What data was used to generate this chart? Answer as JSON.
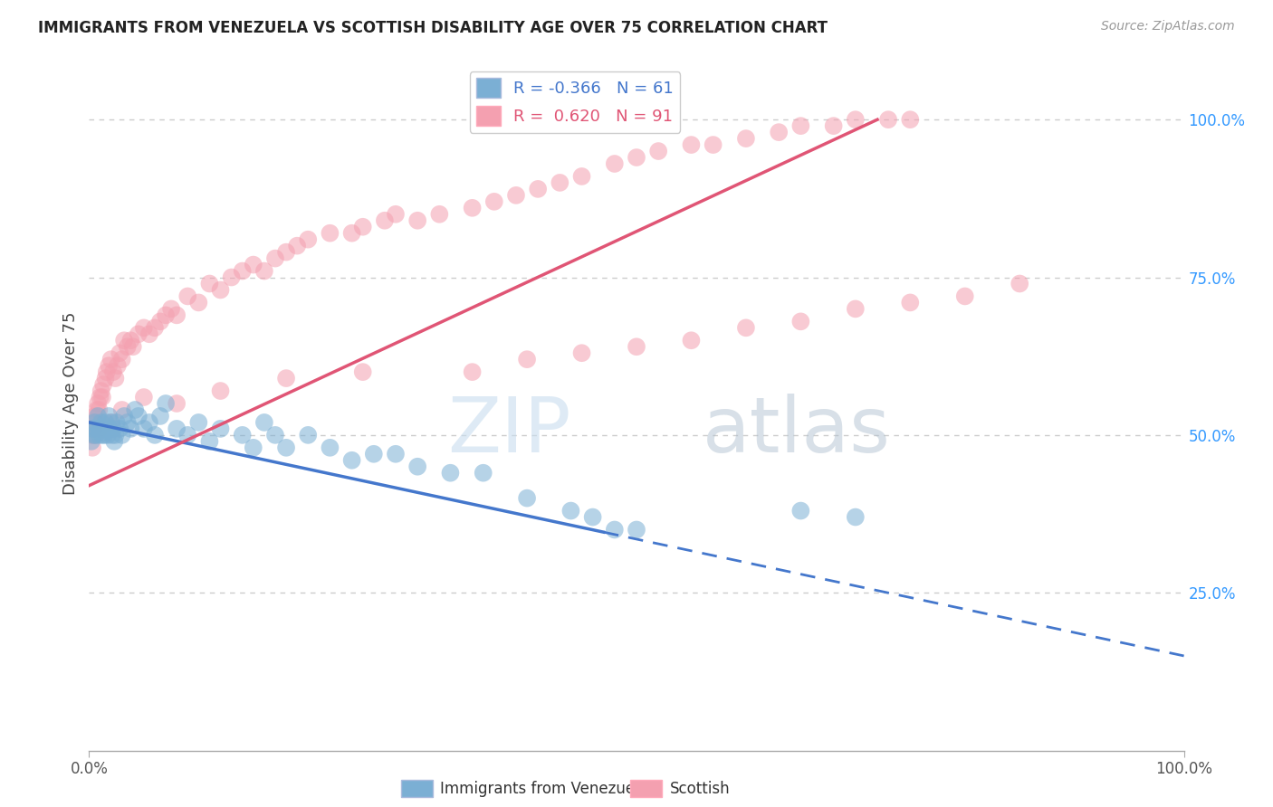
{
  "title": "IMMIGRANTS FROM VENEZUELA VS SCOTTISH DISABILITY AGE OVER 75 CORRELATION CHART",
  "source": "Source: ZipAtlas.com",
  "ylabel": "Disability Age Over 75",
  "blue_R": "-0.366",
  "blue_N": "61",
  "pink_R": "0.620",
  "pink_N": "91",
  "blue_color": "#7BAFD4",
  "pink_color": "#F4A0B0",
  "blue_line_color": "#4477CC",
  "pink_line_color": "#E05575",
  "blue_scatter_x": [
    0.2,
    0.3,
    0.4,
    0.5,
    0.6,
    0.7,
    0.8,
    0.9,
    1.0,
    1.1,
    1.2,
    1.3,
    1.4,
    1.5,
    1.6,
    1.7,
    1.8,
    1.9,
    2.0,
    2.1,
    2.2,
    2.3,
    2.4,
    2.5,
    2.8,
    3.0,
    3.2,
    3.5,
    3.8,
    4.2,
    4.5,
    5.0,
    5.5,
    6.0,
    6.5,
    7.0,
    8.0,
    9.0,
    10.0,
    11.0,
    12.0,
    14.0,
    15.0,
    16.0,
    17.0,
    18.0,
    20.0,
    22.0,
    24.0,
    26.0,
    28.0,
    30.0,
    33.0,
    36.0,
    40.0,
    44.0,
    46.0,
    48.0,
    50.0,
    65.0,
    70.0
  ],
  "blue_scatter_y": [
    49,
    51,
    50,
    52,
    50,
    51,
    53,
    50,
    51,
    52,
    50,
    51,
    50,
    52,
    51,
    50,
    53,
    51,
    52,
    50,
    51,
    49,
    50,
    52,
    51,
    50,
    53,
    52,
    51,
    54,
    53,
    51,
    52,
    50,
    53,
    55,
    51,
    50,
    52,
    49,
    51,
    50,
    48,
    52,
    50,
    48,
    50,
    48,
    46,
    47,
    47,
    45,
    44,
    44,
    40,
    38,
    37,
    35,
    35,
    38,
    37
  ],
  "pink_scatter_x": [
    0.2,
    0.3,
    0.4,
    0.5,
    0.6,
    0.7,
    0.8,
    0.9,
    1.0,
    1.1,
    1.2,
    1.3,
    1.5,
    1.6,
    1.8,
    2.0,
    2.2,
    2.4,
    2.6,
    2.8,
    3.0,
    3.2,
    3.5,
    3.8,
    4.0,
    4.5,
    5.0,
    5.5,
    6.0,
    6.5,
    7.0,
    7.5,
    8.0,
    9.0,
    10.0,
    11.0,
    12.0,
    13.0,
    14.0,
    15.0,
    16.0,
    17.0,
    18.0,
    19.0,
    20.0,
    22.0,
    24.0,
    25.0,
    27.0,
    28.0,
    30.0,
    32.0,
    35.0,
    37.0,
    39.0,
    41.0,
    43.0,
    45.0,
    48.0,
    50.0,
    52.0,
    55.0,
    57.0,
    60.0,
    63.0,
    65.0,
    68.0,
    70.0,
    73.0,
    75.0,
    0.3,
    0.5,
    1.0,
    2.0,
    3.0,
    5.0,
    8.0,
    12.0,
    18.0,
    25.0,
    35.0,
    40.0,
    45.0,
    50.0,
    55.0,
    60.0,
    65.0,
    70.0,
    75.0,
    80.0,
    85.0
  ],
  "pink_scatter_y": [
    50,
    52,
    51,
    53,
    52,
    54,
    55,
    54,
    56,
    57,
    56,
    58,
    59,
    60,
    61,
    62,
    60,
    59,
    61,
    63,
    62,
    65,
    64,
    65,
    64,
    66,
    67,
    66,
    67,
    68,
    69,
    70,
    69,
    72,
    71,
    74,
    73,
    75,
    76,
    77,
    76,
    78,
    79,
    80,
    81,
    82,
    82,
    83,
    84,
    85,
    84,
    85,
    86,
    87,
    88,
    89,
    90,
    91,
    93,
    94,
    95,
    96,
    96,
    97,
    98,
    99,
    99,
    100,
    100,
    100,
    48,
    50,
    51,
    52,
    54,
    56,
    55,
    57,
    59,
    60,
    60,
    62,
    63,
    64,
    65,
    67,
    68,
    70,
    71,
    72,
    74
  ],
  "blue_line_x": [
    0,
    100
  ],
  "blue_line_y": [
    52,
    15
  ],
  "blue_solid_end_x": 47,
  "pink_line_x": [
    0,
    72
  ],
  "pink_line_y": [
    42,
    100
  ],
  "xlim": [
    0,
    100
  ],
  "ylim": [
    0,
    110
  ],
  "ytick_vals": [
    25,
    50,
    75,
    100
  ],
  "ytick_labels": [
    "25.0%",
    "50.0%",
    "75.0%",
    "100.0%"
  ],
  "xtick_vals": [
    0,
    100
  ],
  "xtick_labels": [
    "0.0%",
    "100.0%"
  ],
  "grid_color": "#cccccc",
  "right_axis_color": "#3399FF",
  "title_color": "#222222",
  "background_color": "#ffffff"
}
